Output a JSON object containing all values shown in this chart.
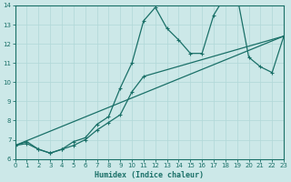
{
  "xlabel": "Humidex (Indice chaleur)",
  "xlim": [
    0,
    23
  ],
  "ylim": [
    6,
    14
  ],
  "xticks": [
    0,
    1,
    2,
    3,
    4,
    5,
    6,
    7,
    8,
    9,
    10,
    11,
    12,
    13,
    14,
    15,
    16,
    17,
    18,
    19,
    20,
    21,
    22,
    23
  ],
  "yticks": [
    6,
    7,
    8,
    9,
    10,
    11,
    12,
    13,
    14
  ],
  "bg_color": "#cce8e8",
  "line_color": "#1a7068",
  "grid_color": "#b0d8d8",
  "line1_x": [
    0,
    1,
    2,
    3,
    4,
    5,
    6,
    7,
    8,
    9,
    10,
    11,
    12,
    13,
    14,
    15,
    16,
    17,
    18,
    19,
    20,
    21,
    22,
    23
  ],
  "line1_y": [
    6.7,
    6.9,
    6.5,
    6.3,
    6.5,
    6.9,
    7.1,
    7.8,
    8.2,
    9.7,
    11.0,
    13.2,
    13.9,
    12.8,
    12.2,
    11.5,
    11.5,
    13.5,
    14.5,
    14.5,
    11.3,
    10.8,
    10.5,
    12.4
  ],
  "line2_x": [
    0,
    1,
    2,
    3,
    4,
    5,
    6,
    7,
    8,
    9,
    10,
    11,
    23
  ],
  "line2_y": [
    6.7,
    6.8,
    6.5,
    6.3,
    6.5,
    6.7,
    7.0,
    7.5,
    7.9,
    8.3,
    9.5,
    10.3,
    12.4
  ],
  "line3_x": [
    0,
    23
  ],
  "line3_y": [
    6.7,
    12.4
  ]
}
